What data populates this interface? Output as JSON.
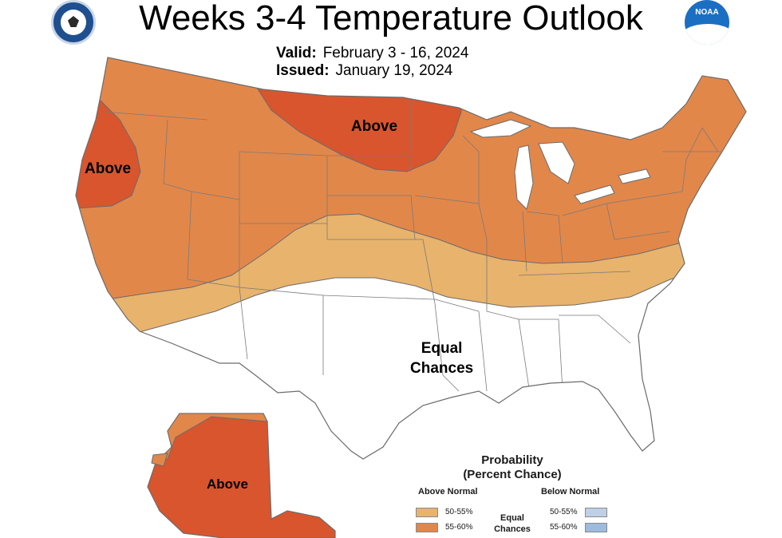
{
  "title": "Weeks 3-4 Temperature Outlook",
  "valid_label": "Valid:",
  "valid_dates": "February 3 - 16, 2024",
  "issued_label": "Issued:",
  "issued_date": "January 19, 2024",
  "region_labels": {
    "northern_plains": "Above",
    "pacific_coast": "Above",
    "south_central": "Equal\nChances",
    "alaska": "Above"
  },
  "legend": {
    "title_line1": "Probability",
    "title_line2": "(Percent Chance)",
    "above_header": "Above Normal",
    "below_header": "Below Normal",
    "equal_chances": "Equal\nChances",
    "above_rows": [
      {
        "label": "50-55%",
        "color": "#e8b36c"
      },
      {
        "label": "55-60%",
        "color": "#e2874a"
      }
    ],
    "below_rows": [
      {
        "label": "50-55%",
        "color": "#bfd0e6"
      },
      {
        "label": "55-60%",
        "color": "#9dbbdc"
      }
    ]
  },
  "colors": {
    "above_50_55": "#e8b36c",
    "above_55_60": "#e2874a",
    "above_60_70": "#d9552e",
    "equal": "#ffffff",
    "border": "#6b6b6b"
  }
}
